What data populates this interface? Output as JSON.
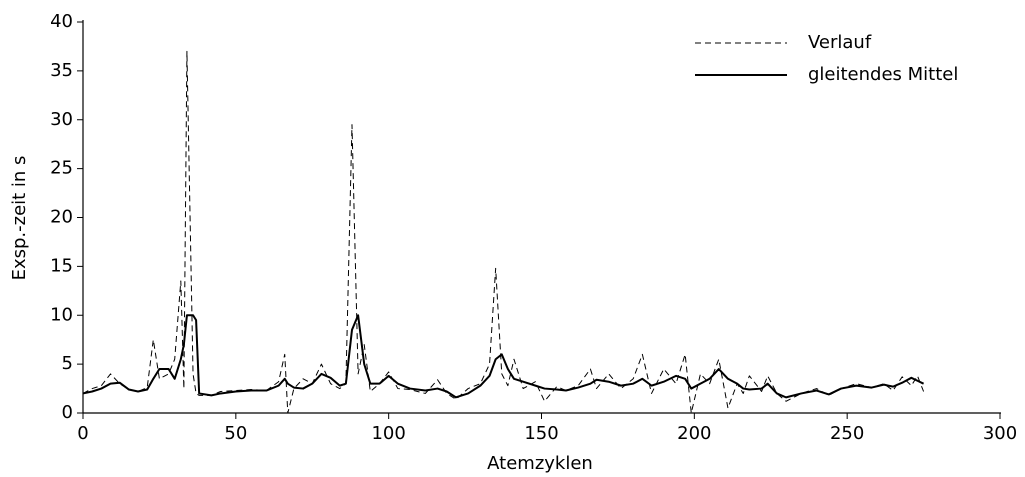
{
  "chart_data": {
    "type": "line",
    "xlabel": "Atemzyklen",
    "ylabel": "Exsp.-zeit in s",
    "x": [
      0,
      3,
      6,
      9,
      12,
      15,
      18,
      21,
      23,
      25,
      28,
      30,
      32,
      33,
      34,
      36,
      37,
      38,
      42,
      45,
      50,
      55,
      60,
      64,
      66,
      67,
      69,
      72,
      75,
      78,
      81,
      84,
      86,
      88,
      90,
      92,
      94,
      97,
      100,
      103,
      107,
      112,
      116,
      119,
      122,
      126,
      130,
      133,
      135,
      137,
      139,
      141,
      144,
      148,
      151,
      155,
      158,
      162,
      166,
      168,
      172,
      176,
      180,
      183,
      186,
      190,
      194,
      197,
      199,
      202,
      205,
      208,
      211,
      214,
      216,
      218,
      222,
      224,
      227,
      230,
      235,
      240,
      244,
      248,
      253,
      258,
      262,
      265,
      268,
      271,
      273,
      275
    ],
    "series": [
      {
        "name": "Verlauf",
        "color": "#000000",
        "style": "dashed",
        "values": [
          2.0,
          2.5,
          2.8,
          4.0,
          3.0,
          2.4,
          2.2,
          2.6,
          7.5,
          3.5,
          4.0,
          5.5,
          13.5,
          2.5,
          37,
          4,
          2,
          1.8,
          1.8,
          2.2,
          2.3,
          2.4,
          2.3,
          3.2,
          6.0,
          0,
          2.5,
          3.5,
          3.0,
          5.0,
          3.0,
          2.5,
          3.0,
          29.5,
          4,
          7,
          2.2,
          3.0,
          4.2,
          2.5,
          2.4,
          2.0,
          3.4,
          2.0,
          1.4,
          2.5,
          3.0,
          5.0,
          14.8,
          4.0,
          2.8,
          5.5,
          2.5,
          3.2,
          1.2,
          2.7,
          2.3,
          2.8,
          4.5,
          2.5,
          4.0,
          2.5,
          3.5,
          6.0,
          2.0,
          4.5,
          3.0,
          6.0,
          0,
          4.0,
          3.0,
          5.5,
          0.5,
          3.0,
          2.0,
          3.8,
          2.2,
          3.8,
          2.0,
          1.2,
          2.0,
          2.5,
          1.8,
          2.5,
          3.0,
          2.6,
          3.0,
          2.3,
          3.7,
          2.8,
          3.8,
          2.2
        ]
      },
      {
        "name": "gleitendes Mittel",
        "color": "#000000",
        "style": "solid",
        "values": [
          2.0,
          2.2,
          2.5,
          3.0,
          3.1,
          2.4,
          2.2,
          2.4,
          3.5,
          4.5,
          4.5,
          3.5,
          5.5,
          7.0,
          10,
          10,
          9.5,
          2.0,
          1.8,
          2.0,
          2.2,
          2.3,
          2.3,
          2.8,
          3.5,
          3.0,
          2.6,
          2.5,
          3.0,
          4.0,
          3.6,
          2.8,
          3.0,
          8.5,
          10,
          5,
          3.0,
          3.0,
          3.8,
          3.0,
          2.5,
          2.3,
          2.5,
          2.2,
          1.6,
          2.0,
          2.8,
          3.8,
          5.5,
          6.0,
          4.5,
          3.5,
          3.2,
          2.8,
          2.5,
          2.4,
          2.3,
          2.6,
          3.0,
          3.4,
          3.2,
          2.8,
          3.0,
          3.5,
          2.8,
          3.2,
          3.8,
          3.5,
          2.5,
          3.0,
          3.5,
          4.5,
          3.5,
          3.0,
          2.5,
          2.4,
          2.5,
          3.0,
          2.0,
          1.6,
          2.0,
          2.3,
          1.9,
          2.5,
          2.8,
          2.6,
          2.9,
          2.7,
          3.1,
          3.6,
          3.3,
          3.0
        ]
      }
    ],
    "xlim": [
      0,
      300
    ],
    "xticks": [
      0,
      50,
      100,
      150,
      200,
      250,
      300
    ],
    "ylim": [
      0,
      40
    ],
    "yticks": [
      0,
      5,
      10,
      15,
      20,
      25,
      30,
      35,
      40
    ],
    "legend": "upper right"
  }
}
